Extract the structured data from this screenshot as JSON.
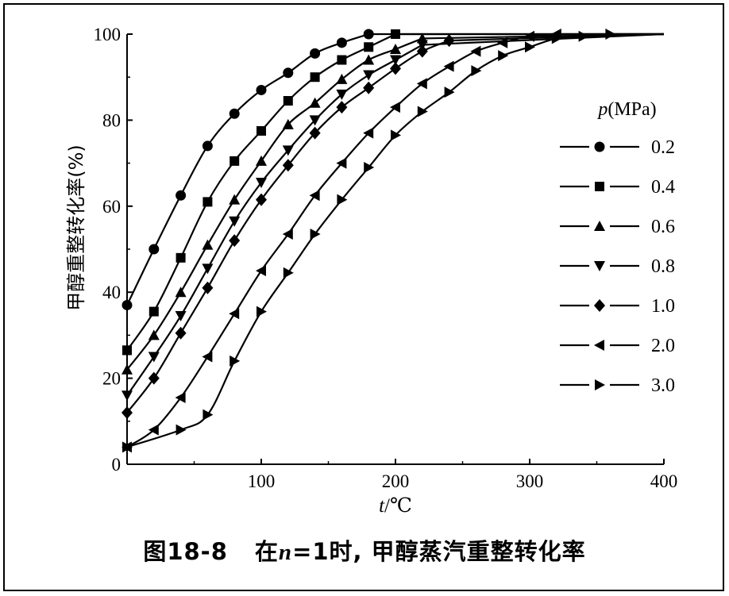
{
  "chart_data": {
    "type": "line",
    "ylabel": "甲醇重整转化率(%)",
    "xlabel_italic": "t",
    "xlabel_rest": "/℃",
    "xlim": [
      0,
      400
    ],
    "ylim": [
      0,
      100
    ],
    "x_ticks": [
      100,
      200,
      300,
      400
    ],
    "y_ticks": [
      0,
      20,
      40,
      60,
      80,
      100
    ],
    "grid": false,
    "legend_position": "right",
    "legend_title_italic": "p",
    "legend_title_rest": "(MPa)",
    "series": [
      {
        "name": "0.2",
        "marker": "circle",
        "x": [
          0,
          20,
          40,
          60,
          80,
          100,
          120,
          140,
          160,
          180
        ],
        "y": [
          37,
          50,
          62.5,
          74,
          81.5,
          87,
          91,
          95.5,
          98,
          100
        ]
      },
      {
        "name": "0.4",
        "marker": "square",
        "x": [
          0,
          0,
          20,
          40,
          60,
          80,
          100,
          120,
          140,
          160,
          180,
          200
        ],
        "y": [
          26.5,
          26.5,
          35.5,
          48,
          61,
          70.5,
          77.5,
          84.5,
          90,
          94,
          97,
          100
        ]
      },
      {
        "name": "0.6",
        "marker": "triangle-up",
        "x": [
          0,
          20,
          40,
          60,
          80,
          100,
          120,
          140,
          160,
          180,
          200,
          220
        ],
        "y": [
          22,
          30,
          40,
          51,
          61.5,
          70.5,
          79,
          84,
          89.5,
          94,
          96.5,
          99
        ]
      },
      {
        "name": "0.8",
        "marker": "triangle-down",
        "x": [
          0,
          20,
          40,
          60,
          80,
          100,
          120,
          140,
          160,
          180,
          200,
          220
        ],
        "y": [
          16,
          25,
          34.5,
          45.5,
          56.5,
          65.5,
          73,
          80,
          86,
          90.5,
          94,
          97.5
        ]
      },
      {
        "name": "1.0",
        "marker": "diamond",
        "x": [
          0,
          20,
          40,
          60,
          80,
          100,
          120,
          140,
          160,
          180,
          200,
          220,
          240
        ],
        "y": [
          12,
          20,
          30.5,
          41,
          52,
          61.5,
          69.5,
          77,
          83,
          87.5,
          92,
          96,
          98.5
        ]
      },
      {
        "name": "2.0",
        "marker": "triangle-left",
        "x": [
          0,
          20,
          40,
          60,
          80,
          100,
          120,
          140,
          160,
          180,
          200,
          220,
          240,
          260,
          280,
          300,
          320
        ],
        "y": [
          4,
          8,
          15.5,
          25,
          35,
          45,
          53.5,
          62.5,
          70,
          77,
          83,
          88.5,
          92.5,
          96,
          98,
          99.5,
          100
        ]
      },
      {
        "name": "3.0",
        "marker": "triangle-right",
        "x": [
          0,
          40,
          60,
          80,
          100,
          120,
          140,
          160,
          180,
          200,
          220,
          240,
          260,
          280,
          300,
          320,
          340,
          360
        ],
        "y": [
          4,
          8,
          11.5,
          24,
          35.5,
          44.5,
          53.5,
          61.5,
          69,
          76.5,
          82,
          86.5,
          91.5,
          95,
          97,
          99,
          99.5,
          100
        ]
      }
    ]
  },
  "caption": {
    "figure_no": "图18-8",
    "prefix": "在",
    "var": "n",
    "eq": "=1时, 甲醇蒸汽重整转化率"
  }
}
